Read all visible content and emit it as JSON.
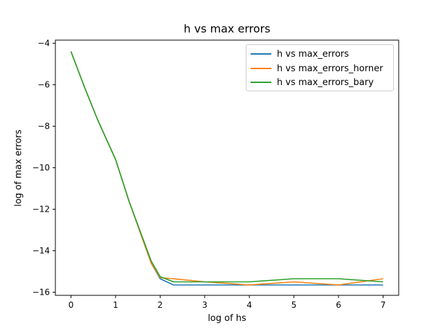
{
  "chart_data": {
    "type": "line",
    "title": "h vs max errors",
    "xlabel": "log of hs",
    "ylabel": "log of max errors",
    "xlim": [
      -0.35,
      7.35
    ],
    "ylim": [
      -16.15,
      -3.85
    ],
    "xticks": [
      0,
      1,
      2,
      3,
      4,
      5,
      6,
      7
    ],
    "yticks": [
      -16,
      -14,
      -12,
      -10,
      -8,
      -6,
      -4
    ],
    "legend_position": "top-right",
    "grid": false,
    "series": [
      {
        "name": "h vs max_errors",
        "color": "#1f77b4",
        "x": [
          0,
          0.3,
          0.6,
          1.0,
          1.3,
          1.8,
          2.0,
          2.3,
          3.0,
          4.0,
          5.0,
          6.0,
          7.0
        ],
        "y": [
          -4.4,
          -6.1,
          -7.7,
          -9.6,
          -11.6,
          -14.6,
          -15.35,
          -15.65,
          -15.65,
          -15.65,
          -15.65,
          -15.65,
          -15.65
        ]
      },
      {
        "name": "h vs max_errors_horner",
        "color": "#ff7f0e",
        "x": [
          0,
          0.3,
          0.6,
          1.0,
          1.3,
          1.8,
          2.0,
          2.3,
          3.0,
          4.0,
          5.0,
          6.0,
          7.0
        ],
        "y": [
          -4.4,
          -6.1,
          -7.7,
          -9.6,
          -11.6,
          -14.6,
          -15.3,
          -15.35,
          -15.5,
          -15.65,
          -15.5,
          -15.65,
          -15.35
        ]
      },
      {
        "name": "h vs max_errors_bary",
        "color": "#2ca02c",
        "x": [
          0,
          0.3,
          0.6,
          1.0,
          1.3,
          1.8,
          2.0,
          2.3,
          3.0,
          4.0,
          5.0,
          6.0,
          7.0
        ],
        "y": [
          -4.4,
          -6.1,
          -7.7,
          -9.6,
          -11.6,
          -14.5,
          -15.25,
          -15.5,
          -15.5,
          -15.5,
          -15.35,
          -15.35,
          -15.5
        ]
      }
    ]
  }
}
